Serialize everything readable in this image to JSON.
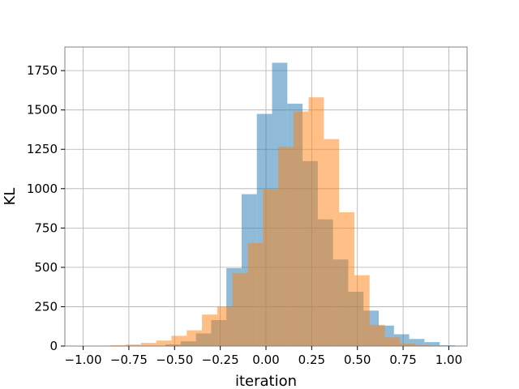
{
  "chart_data": {
    "type": "bar",
    "title": "",
    "xlabel": "iteration",
    "ylabel": "KL",
    "xlim": [
      -1.1,
      1.1
    ],
    "ylim": [
      0,
      1900
    ],
    "grid": true,
    "legend": "none",
    "xticks": [
      -1.0,
      -0.75,
      -0.5,
      -0.25,
      0.0,
      0.25,
      0.5,
      0.75,
      1.0
    ],
    "xtick_labels": [
      "−1.00",
      "−0.75",
      "−0.50",
      "−0.25",
      "0.00",
      "0.25",
      "0.50",
      "0.75",
      "1.00"
    ],
    "yticks": [
      0,
      250,
      500,
      750,
      1000,
      1250,
      1500,
      1750
    ],
    "ytick_labels": [
      "0",
      "250",
      "500",
      "750",
      "1000",
      "1250",
      "1500",
      "1750"
    ],
    "bin_width": 0.0833,
    "series": [
      {
        "color": "#1f77b4",
        "opacity": 0.5,
        "bins": [
          {
            "x0": -0.55,
            "value": 10
          },
          {
            "x0": -0.4667,
            "value": 30
          },
          {
            "x0": -0.3833,
            "value": 80
          },
          {
            "x0": -0.3,
            "value": 165
          },
          {
            "x0": -0.2167,
            "value": 495
          },
          {
            "x0": -0.1333,
            "value": 965
          },
          {
            "x0": -0.05,
            "value": 1475
          },
          {
            "x0": 0.0333,
            "value": 1800
          },
          {
            "x0": 0.1167,
            "value": 1540
          },
          {
            "x0": 0.2,
            "value": 1175
          },
          {
            "x0": 0.2833,
            "value": 805
          },
          {
            "x0": 0.3667,
            "value": 550
          },
          {
            "x0": 0.45,
            "value": 345
          },
          {
            "x0": 0.5333,
            "value": 225
          },
          {
            "x0": 0.6167,
            "value": 130
          },
          {
            "x0": 0.7,
            "value": 75
          },
          {
            "x0": 0.7833,
            "value": 45
          },
          {
            "x0": 0.8667,
            "value": 25
          },
          {
            "x0": 0.95,
            "value": 5
          }
        ]
      },
      {
        "color": "#ff7f0e",
        "opacity": 0.5,
        "bins": [
          {
            "x0": -0.85,
            "value": 5
          },
          {
            "x0": -0.7667,
            "value": 10
          },
          {
            "x0": -0.6833,
            "value": 20
          },
          {
            "x0": -0.6,
            "value": 35
          },
          {
            "x0": -0.5167,
            "value": 65
          },
          {
            "x0": -0.4333,
            "value": 100
          },
          {
            "x0": -0.35,
            "value": 200
          },
          {
            "x0": -0.2667,
            "value": 250
          },
          {
            "x0": -0.1833,
            "value": 465
          },
          {
            "x0": -0.1,
            "value": 655
          },
          {
            "x0": -0.0167,
            "value": 995
          },
          {
            "x0": 0.0667,
            "value": 1265
          },
          {
            "x0": 0.15,
            "value": 1490
          },
          {
            "x0": 0.2333,
            "value": 1580
          },
          {
            "x0": 0.3167,
            "value": 1315
          },
          {
            "x0": 0.4,
            "value": 850
          },
          {
            "x0": 0.4833,
            "value": 450
          },
          {
            "x0": 0.5667,
            "value": 135
          },
          {
            "x0": 0.65,
            "value": 55
          },
          {
            "x0": 0.7333,
            "value": 15
          },
          {
            "x0": 0.8167,
            "value": 5
          }
        ]
      }
    ]
  }
}
